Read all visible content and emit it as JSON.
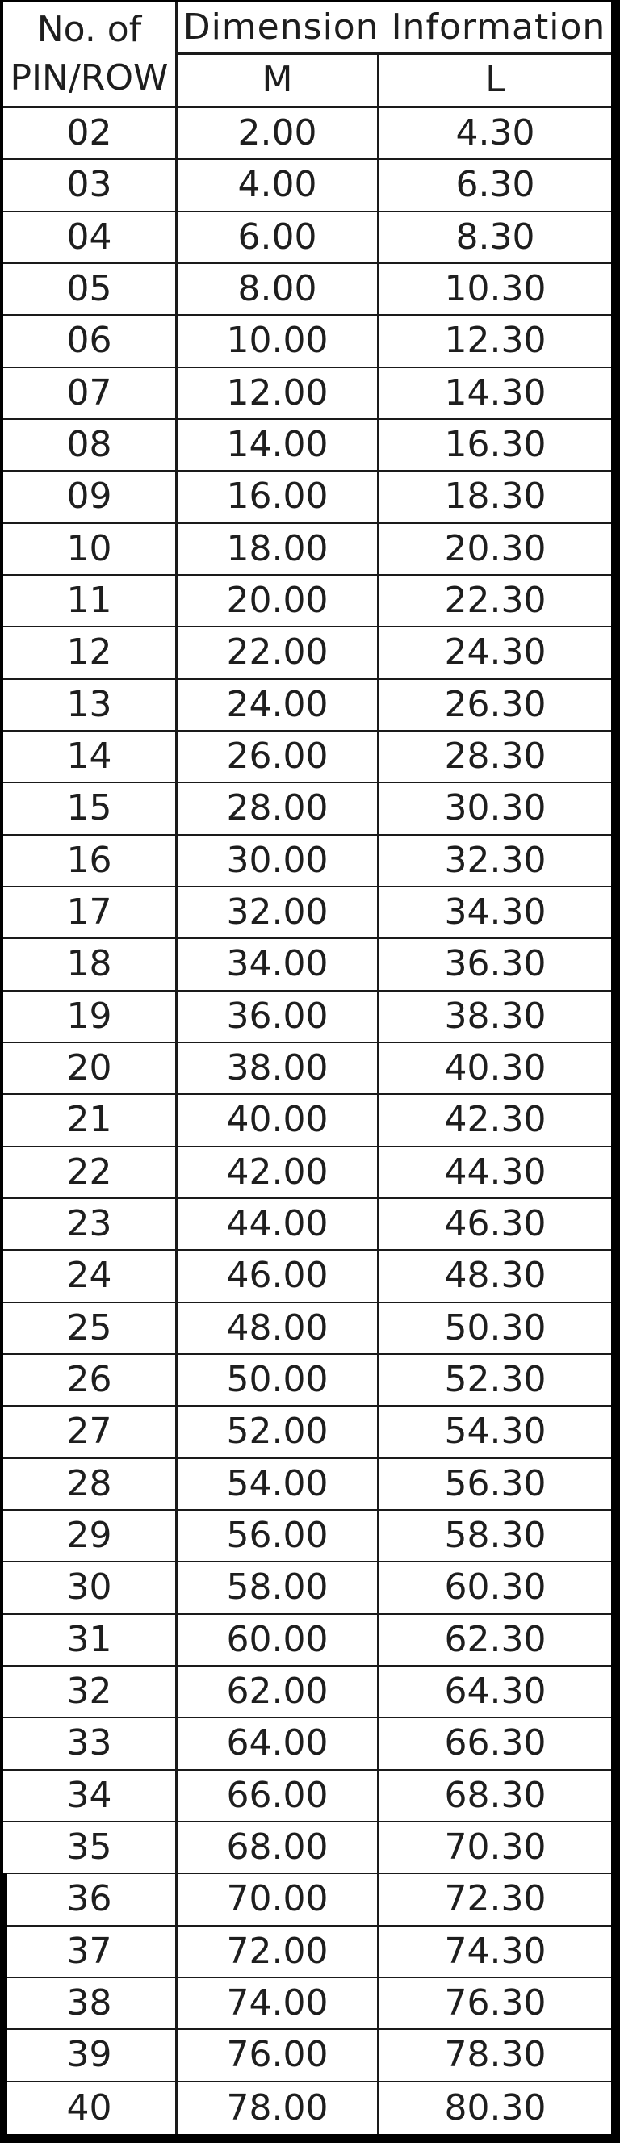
{
  "table": {
    "header": {
      "pin_line1": "No. of",
      "pin_line2": "PIN/ROW",
      "group_label": "Dimension Information",
      "col_m": "M",
      "col_l": "L"
    },
    "rows": [
      {
        "pin": "02",
        "m": "2.00",
        "l": "4.30"
      },
      {
        "pin": "03",
        "m": "4.00",
        "l": "6.30"
      },
      {
        "pin": "04",
        "m": "6.00",
        "l": "8.30"
      },
      {
        "pin": "05",
        "m": "8.00",
        "l": "10.30"
      },
      {
        "pin": "06",
        "m": "10.00",
        "l": "12.30"
      },
      {
        "pin": "07",
        "m": "12.00",
        "l": "14.30"
      },
      {
        "pin": "08",
        "m": "14.00",
        "l": "16.30"
      },
      {
        "pin": "09",
        "m": "16.00",
        "l": "18.30"
      },
      {
        "pin": "10",
        "m": "18.00",
        "l": "20.30"
      },
      {
        "pin": "11",
        "m": "20.00",
        "l": "22.30"
      },
      {
        "pin": "12",
        "m": "22.00",
        "l": "24.30"
      },
      {
        "pin": "13",
        "m": "24.00",
        "l": "26.30"
      },
      {
        "pin": "14",
        "m": "26.00",
        "l": "28.30"
      },
      {
        "pin": "15",
        "m": "28.00",
        "l": "30.30"
      },
      {
        "pin": "16",
        "m": "30.00",
        "l": "32.30"
      },
      {
        "pin": "17",
        "m": "32.00",
        "l": "34.30"
      },
      {
        "pin": "18",
        "m": "34.00",
        "l": "36.30"
      },
      {
        "pin": "19",
        "m": "36.00",
        "l": "38.30"
      },
      {
        "pin": "20",
        "m": "38.00",
        "l": "40.30"
      },
      {
        "pin": "21",
        "m": "40.00",
        "l": "42.30"
      },
      {
        "pin": "22",
        "m": "42.00",
        "l": "44.30"
      },
      {
        "pin": "23",
        "m": "44.00",
        "l": "46.30"
      },
      {
        "pin": "24",
        "m": "46.00",
        "l": "48.30"
      },
      {
        "pin": "25",
        "m": "48.00",
        "l": "50.30"
      },
      {
        "pin": "26",
        "m": "50.00",
        "l": "52.30"
      },
      {
        "pin": "27",
        "m": "52.00",
        "l": "54.30"
      },
      {
        "pin": "28",
        "m": "54.00",
        "l": "56.30"
      },
      {
        "pin": "29",
        "m": "56.00",
        "l": "58.30"
      },
      {
        "pin": "30",
        "m": "58.00",
        "l": "60.30"
      },
      {
        "pin": "31",
        "m": "60.00",
        "l": "62.30"
      },
      {
        "pin": "32",
        "m": "62.00",
        "l": "64.30"
      },
      {
        "pin": "33",
        "m": "64.00",
        "l": "66.30"
      },
      {
        "pin": "34",
        "m": "66.00",
        "l": "68.30"
      },
      {
        "pin": "35",
        "m": "68.00",
        "l": "70.30"
      },
      {
        "pin": "36",
        "m": "70.00",
        "l": "72.30"
      },
      {
        "pin": "37",
        "m": "72.00",
        "l": "74.30"
      },
      {
        "pin": "38",
        "m": "74.00",
        "l": "76.30"
      },
      {
        "pin": "39",
        "m": "76.00",
        "l": "78.30"
      },
      {
        "pin": "40",
        "m": "78.00",
        "l": "80.30"
      }
    ]
  },
  "colors": {
    "line": "#1a1a1a",
    "frame": "#000000",
    "text": "#1e1e1e",
    "background": "#ffffff"
  }
}
